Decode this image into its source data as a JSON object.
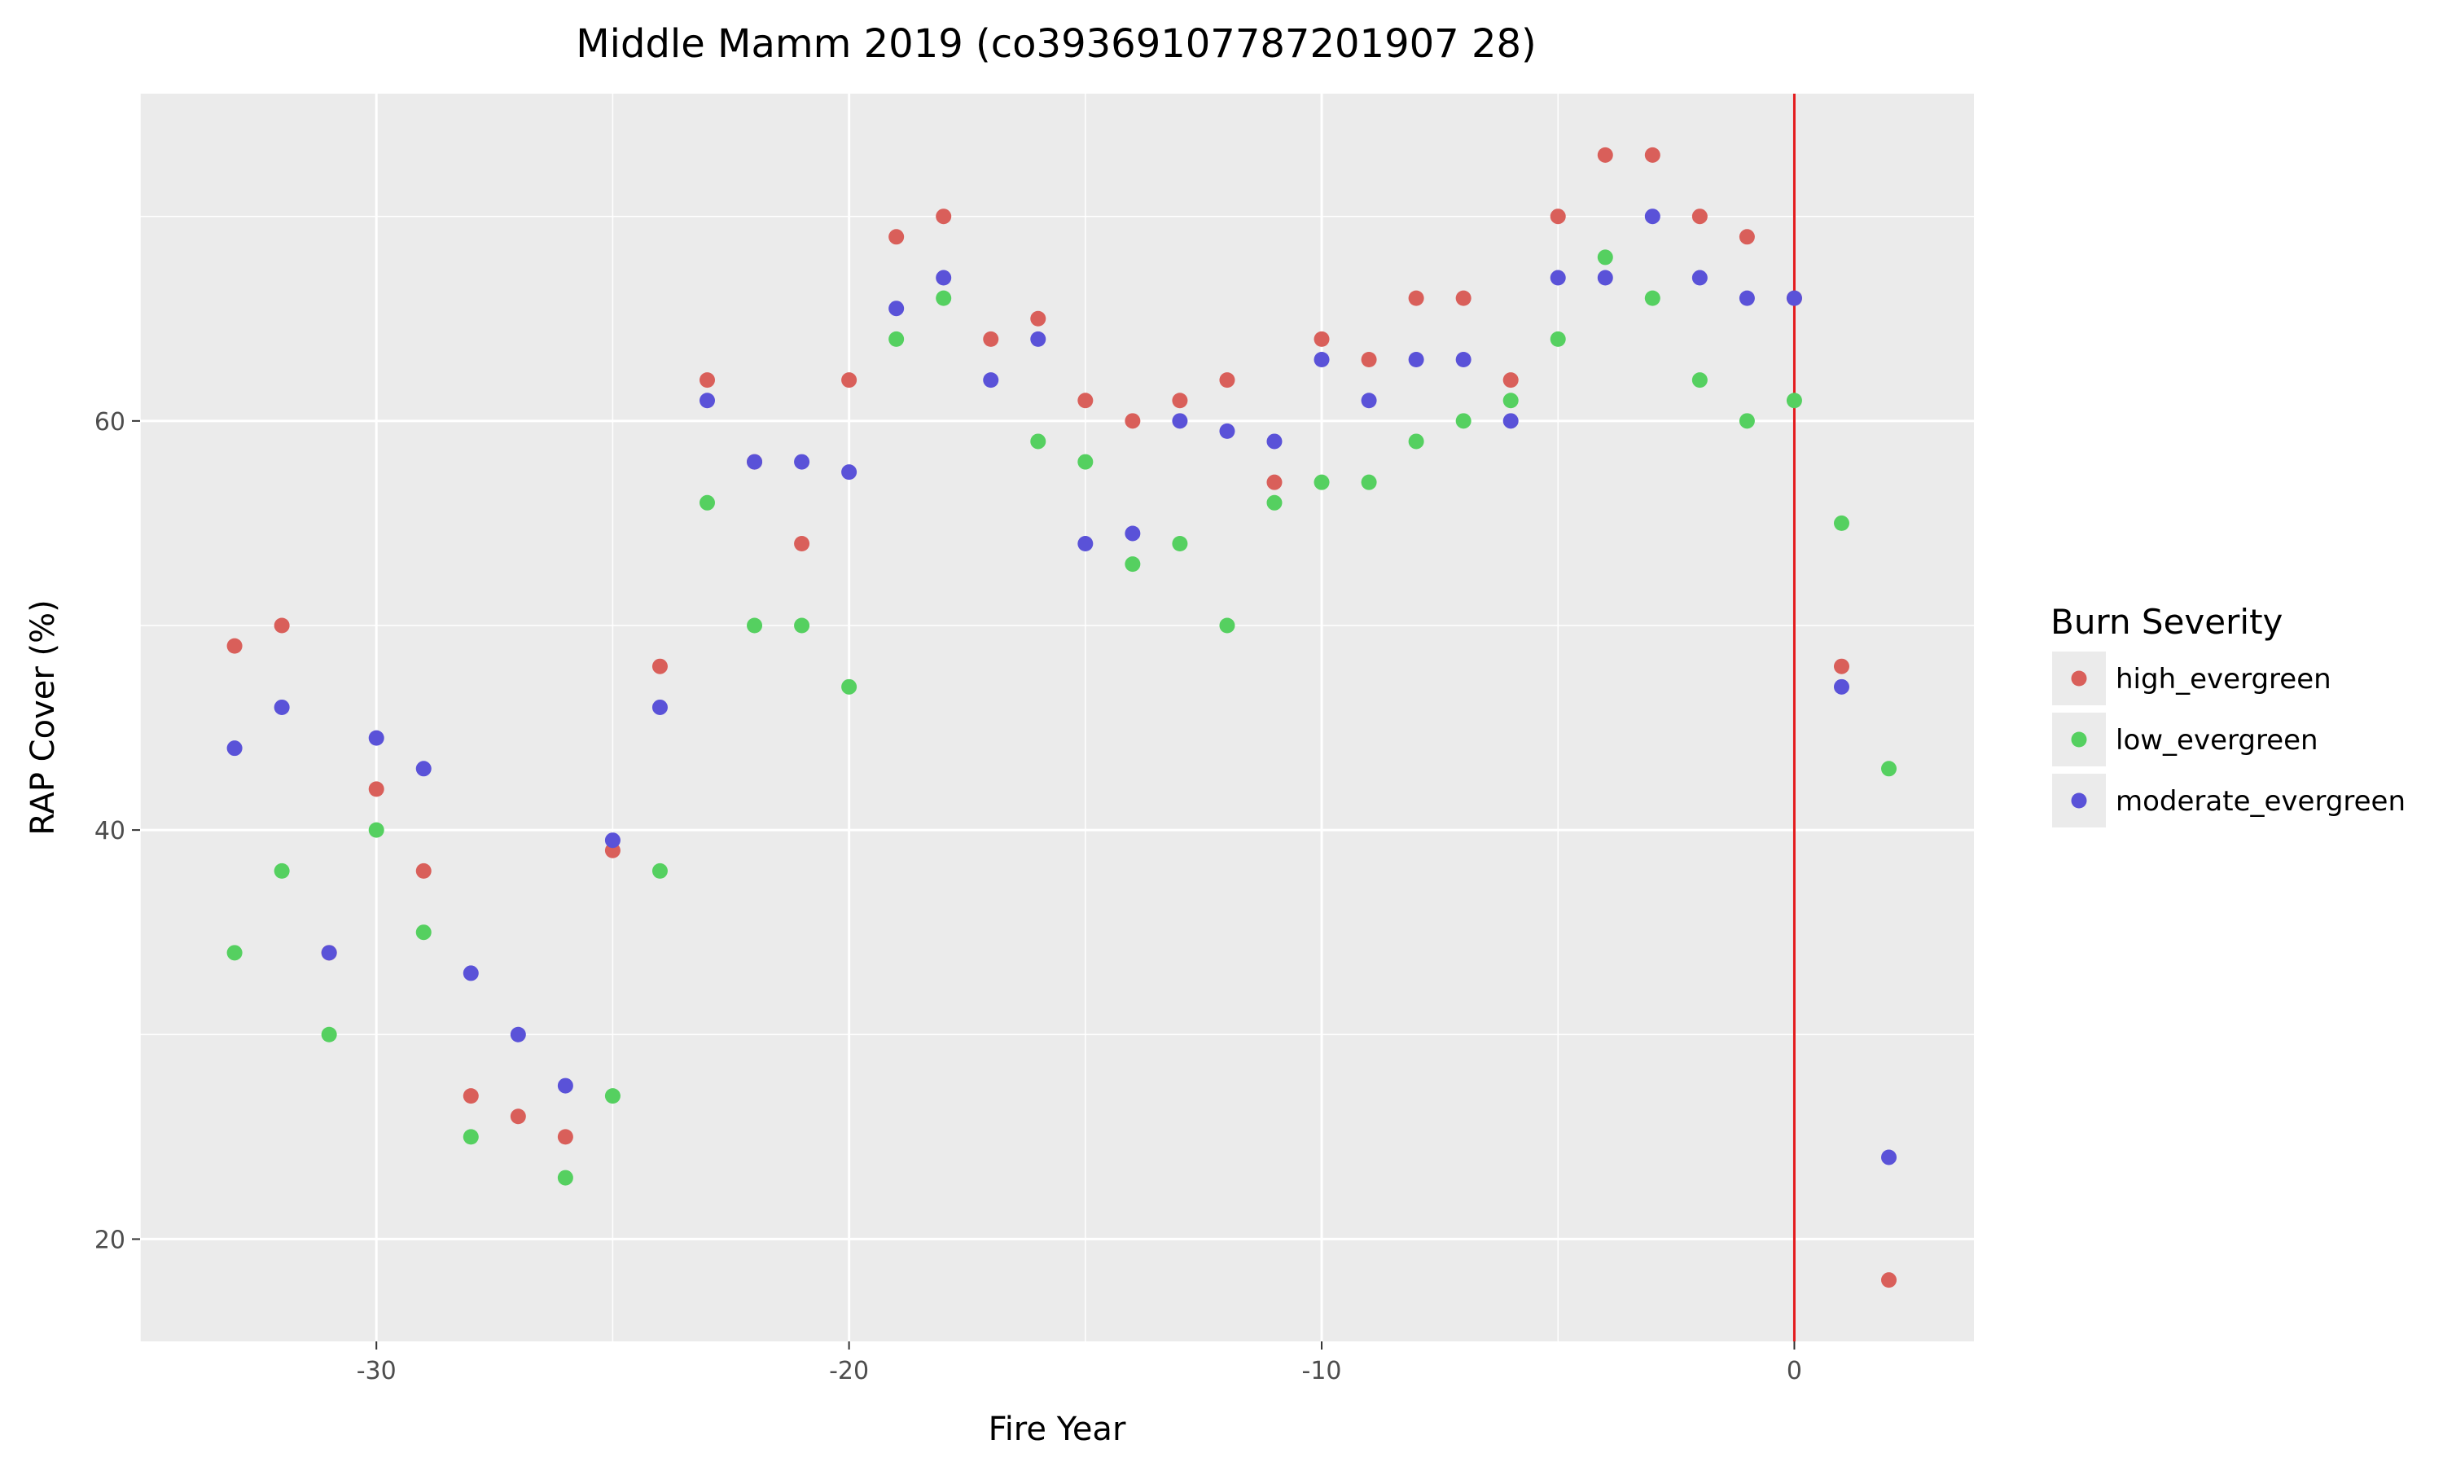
{
  "chart_data": {
    "type": "scatter",
    "title": "Middle Mamm 2019 (co39369107787201907 28)",
    "xlabel": "Fire Year",
    "ylabel": "RAP Cover (%)",
    "xlim": [
      -35,
      3.8
    ],
    "ylim": [
      15,
      76
    ],
    "x_ticks": [
      -30,
      -20,
      -10,
      0
    ],
    "y_ticks": [
      20,
      40,
      60
    ],
    "grid": true,
    "vline": {
      "x": 0,
      "color": "#e31a1c"
    },
    "legend": {
      "title": "Burn Severity",
      "position": "right"
    },
    "series": [
      {
        "name": "high_evergreen",
        "color": "#d95f5a",
        "points": [
          [
            -33,
            49
          ],
          [
            -32,
            50
          ],
          [
            -31,
            34
          ],
          [
            -30,
            42
          ],
          [
            -29,
            38
          ],
          [
            -28,
            27
          ],
          [
            -27,
            26
          ],
          [
            -26,
            25
          ],
          [
            -25,
            39
          ],
          [
            -24,
            48
          ],
          [
            -23,
            62
          ],
          [
            -22,
            58
          ],
          [
            -21,
            54
          ],
          [
            -20,
            62
          ],
          [
            -19,
            69
          ],
          [
            -18,
            70
          ],
          [
            -17,
            64
          ],
          [
            -16,
            65
          ],
          [
            -15,
            61
          ],
          [
            -14,
            60
          ],
          [
            -13,
            61
          ],
          [
            -12,
            62
          ],
          [
            -11,
            57
          ],
          [
            -10,
            64
          ],
          [
            -9,
            63
          ],
          [
            -8,
            66
          ],
          [
            -7,
            66
          ],
          [
            -6,
            62
          ],
          [
            -5,
            70
          ],
          [
            -4,
            73
          ],
          [
            -3,
            73
          ],
          [
            -2,
            70
          ],
          [
            -1,
            69
          ],
          [
            0,
            66
          ],
          [
            1,
            48
          ],
          [
            2,
            18
          ]
        ]
      },
      {
        "name": "low_evergreen",
        "color": "#55d060",
        "points": [
          [
            -33,
            34
          ],
          [
            -32,
            38
          ],
          [
            -31,
            30
          ],
          [
            -30,
            40
          ],
          [
            -29,
            35
          ],
          [
            -28,
            25
          ],
          [
            -26,
            23
          ],
          [
            -25,
            27
          ],
          [
            -24,
            38
          ],
          [
            -23,
            56
          ],
          [
            -22,
            50
          ],
          [
            -21,
            50
          ],
          [
            -20,
            47
          ],
          [
            -19,
            64
          ],
          [
            -18,
            66
          ],
          [
            -16,
            59
          ],
          [
            -15,
            58
          ],
          [
            -14,
            53
          ],
          [
            -13,
            54
          ],
          [
            -12,
            50
          ],
          [
            -11,
            56
          ],
          [
            -10,
            57
          ],
          [
            -9,
            57
          ],
          [
            -8,
            59
          ],
          [
            -7,
            60
          ],
          [
            -6,
            61
          ],
          [
            -5,
            64
          ],
          [
            -4,
            68
          ],
          [
            -3,
            66
          ],
          [
            -2,
            62
          ],
          [
            -1,
            60
          ],
          [
            0,
            61
          ],
          [
            1,
            55
          ],
          [
            2,
            43
          ]
        ]
      },
      {
        "name": "moderate_evergreen",
        "color": "#5a52d8",
        "points": [
          [
            -33,
            44
          ],
          [
            -32,
            46
          ],
          [
            -31,
            34
          ],
          [
            -30,
            44.5
          ],
          [
            -29,
            43
          ],
          [
            -28,
            33
          ],
          [
            -27,
            30
          ],
          [
            -26,
            27.5
          ],
          [
            -25,
            39.5
          ],
          [
            -24,
            46
          ],
          [
            -23,
            61
          ],
          [
            -22,
            58
          ],
          [
            -21,
            58
          ],
          [
            -20,
            57.5
          ],
          [
            -19,
            65.5
          ],
          [
            -18,
            67
          ],
          [
            -17,
            62
          ],
          [
            -16,
            64
          ],
          [
            -15,
            54
          ],
          [
            -14,
            54.5
          ],
          [
            -13,
            60
          ],
          [
            -12,
            59.5
          ],
          [
            -11,
            59
          ],
          [
            -10,
            63
          ],
          [
            -9,
            61
          ],
          [
            -8,
            63
          ],
          [
            -7,
            63
          ],
          [
            -6,
            60
          ],
          [
            -5,
            67
          ],
          [
            -4,
            67
          ],
          [
            -3,
            70
          ],
          [
            -2,
            67
          ],
          [
            -1,
            66
          ],
          [
            0,
            66
          ],
          [
            1,
            47
          ],
          [
            2,
            24
          ]
        ]
      }
    ]
  }
}
